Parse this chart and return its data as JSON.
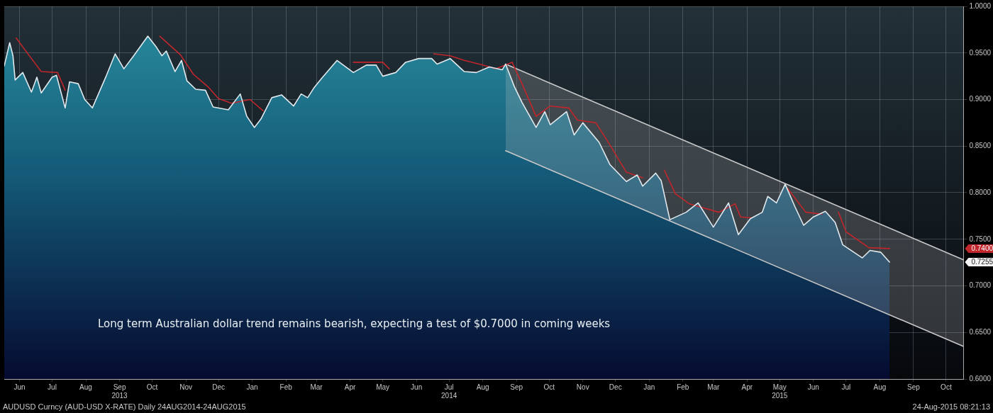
{
  "chart_data": {
    "type": "area",
    "grid": true,
    "legend": false,
    "marker": "none",
    "xlim": [
      "2013-06-01",
      "2015-10-31"
    ],
    "xticks": [
      {
        "value": "2013-06-15",
        "label": "Jun"
      },
      {
        "value": "2013-07-15",
        "label": "Jul"
      },
      {
        "value": "2013-08-15",
        "label": "Aug"
      },
      {
        "value": "2013-09-15",
        "label": "Sep\n2013"
      },
      {
        "value": "2013-10-15",
        "label": "Oct"
      },
      {
        "value": "2013-11-15",
        "label": "Nov"
      },
      {
        "value": "2013-12-15",
        "label": "Dec"
      },
      {
        "value": "2014-01-15",
        "label": "Jan"
      },
      {
        "value": "2014-02-15",
        "label": "Feb"
      },
      {
        "value": "2014-03-15",
        "label": "Mar"
      },
      {
        "value": "2014-04-15",
        "label": "Apr"
      },
      {
        "value": "2014-05-15",
        "label": "May"
      },
      {
        "value": "2014-06-15",
        "label": "Jun"
      },
      {
        "value": "2014-07-15",
        "label": "Jul\n2014"
      },
      {
        "value": "2014-08-15",
        "label": "Aug"
      },
      {
        "value": "2014-09-15",
        "label": "Sep"
      },
      {
        "value": "2014-10-15",
        "label": "Oct"
      },
      {
        "value": "2014-11-15",
        "label": "Nov"
      },
      {
        "value": "2014-12-15",
        "label": "Dec"
      },
      {
        "value": "2015-01-15",
        "label": "Jan"
      },
      {
        "value": "2015-02-15",
        "label": "Feb"
      },
      {
        "value": "2015-03-15",
        "label": "Mar"
      },
      {
        "value": "2015-04-15",
        "label": "Apr"
      },
      {
        "value": "2015-05-15",
        "label": "May\n2015"
      },
      {
        "value": "2015-06-15",
        "label": "Jun"
      },
      {
        "value": "2015-07-15",
        "label": "Jul"
      },
      {
        "value": "2015-08-15",
        "label": "Aug"
      },
      {
        "value": "2015-09-15",
        "label": "Sep"
      },
      {
        "value": "2015-10-15",
        "label": "Oct"
      }
    ],
    "ylim": [
      0.6,
      1.0
    ],
    "yticks": [
      {
        "value": 0.6,
        "label": "0.6000"
      },
      {
        "value": 0.65,
        "label": "0.6500"
      },
      {
        "value": 0.7,
        "label": "0.7000"
      },
      {
        "value": 0.75,
        "label": "0.7500"
      },
      {
        "value": 0.8,
        "label": "0.8000"
      },
      {
        "value": 0.85,
        "label": "0.8500"
      },
      {
        "value": 0.9,
        "label": "0.9000"
      },
      {
        "value": 0.95,
        "label": "0.9500"
      },
      {
        "value": 1.0,
        "label": "1.0000"
      }
    ],
    "series": [
      {
        "color": "#dfe9ee",
        "x": [
          "2013-06-01",
          "2013-06-06",
          "2013-06-09",
          "2013-06-11",
          "2013-06-18",
          "2013-06-26",
          "2013-07-01",
          "2013-07-05",
          "2013-07-15",
          "2013-07-19",
          "2013-07-27",
          "2013-07-31",
          "2013-08-08",
          "2013-08-14",
          "2013-08-21",
          "2013-09-03",
          "2013-09-11",
          "2013-09-19",
          "2013-09-28",
          "2013-10-11",
          "2013-10-19",
          "2013-10-24",
          "2013-10-28",
          "2013-11-05",
          "2013-11-11",
          "2013-11-16",
          "2013-11-24",
          "2013-12-03",
          "2013-12-10",
          "2013-12-24",
          "2014-01-04",
          "2014-01-10",
          "2014-01-17",
          "2014-01-23",
          "2014-02-02",
          "2014-02-11",
          "2014-02-22",
          "2014-03-01",
          "2014-03-07",
          "2014-03-13",
          "2014-03-20",
          "2014-04-03",
          "2014-04-18",
          "2014-04-30",
          "2014-05-09",
          "2014-05-15",
          "2014-05-27",
          "2014-06-05",
          "2014-06-17",
          "2014-06-29",
          "2014-07-04",
          "2014-07-16",
          "2014-07-29",
          "2014-08-09",
          "2014-08-21",
          "2014-09-02",
          "2014-09-05",
          "2014-09-13",
          "2014-09-20",
          "2014-10-03",
          "2014-10-11",
          "2014-10-16",
          "2014-10-31",
          "2014-11-07",
          "2014-11-15",
          "2014-11-30",
          "2014-12-10",
          "2014-12-25",
          "2015-01-04",
          "2015-01-09",
          "2015-01-21",
          "2015-01-26",
          "2015-02-03",
          "2015-02-18",
          "2015-03-01",
          "2015-03-15",
          "2015-03-29",
          "2015-04-07",
          "2015-04-18",
          "2015-04-29",
          "2015-05-04",
          "2015-05-12",
          "2015-05-20",
          "2015-05-29",
          "2015-06-06",
          "2015-06-15",
          "2015-06-26",
          "2015-07-05",
          "2015-07-12",
          "2015-07-30",
          "2015-08-06",
          "2015-08-16",
          "2015-08-24"
        ],
        "values": [
          0.936,
          0.961,
          0.947,
          0.921,
          0.929,
          0.908,
          0.924,
          0.907,
          0.924,
          0.926,
          0.891,
          0.919,
          0.917,
          0.9,
          0.891,
          0.926,
          0.949,
          0.933,
          0.947,
          0.968,
          0.956,
          0.947,
          0.952,
          0.93,
          0.942,
          0.92,
          0.911,
          0.91,
          0.892,
          0.889,
          0.906,
          0.882,
          0.87,
          0.879,
          0.902,
          0.905,
          0.893,
          0.906,
          0.902,
          0.913,
          0.923,
          0.942,
          0.929,
          0.937,
          0.937,
          0.925,
          0.929,
          0.94,
          0.944,
          0.944,
          0.938,
          0.944,
          0.93,
          0.929,
          0.935,
          0.932,
          0.938,
          0.914,
          0.897,
          0.87,
          0.887,
          0.873,
          0.887,
          0.862,
          0.875,
          0.854,
          0.83,
          0.812,
          0.819,
          0.807,
          0.821,
          0.813,
          0.771,
          0.779,
          0.789,
          0.763,
          0.789,
          0.755,
          0.772,
          0.779,
          0.796,
          0.789,
          0.809,
          0.785,
          0.765,
          0.774,
          0.78,
          0.768,
          0.744,
          0.73,
          0.738,
          0.736,
          0.7255
        ]
      },
      {
        "type": "line",
        "color": "#c0262c",
        "x": [
          "2013-06-12",
          "2013-06-26",
          "2013-07-05",
          "2013-07-20",
          "2013-07-27",
          "2013-08-01",
          "2013-10-22",
          "2013-11-10",
          "2013-11-22",
          "2013-12-06",
          "2013-12-15",
          "2013-12-27",
          "2014-01-13",
          "2014-01-25",
          "2014-02-05",
          "2014-04-18",
          "2014-05-15",
          "2014-05-21",
          "2014-06-01",
          "2014-07-01",
          "2014-07-16",
          "2014-07-29",
          "2014-08-15",
          "2014-08-27",
          "2014-09-11",
          "2014-09-20",
          "2014-10-03",
          "2014-10-16",
          "2014-11-02",
          "2014-11-10",
          "2014-11-27",
          "2014-12-10",
          "2014-12-25",
          "2015-01-09",
          "2015-01-15",
          "2015-01-29",
          "2015-02-08",
          "2015-02-21",
          "2015-03-20",
          "2015-04-04",
          "2015-04-09",
          "2015-04-19",
          "2015-04-25",
          "2015-05-22",
          "2015-06-08",
          "2015-06-23",
          "2015-06-28",
          "2015-07-08",
          "2015-07-15",
          "2015-08-05",
          "2015-08-24"
        ],
        "values": [
          0.966,
          0.944,
          0.93,
          0.929,
          0.91,
          null,
          0.968,
          0.948,
          0.927,
          0.913,
          0.901,
          0.896,
          0.9,
          0.888,
          null,
          0.94,
          0.94,
          0.933,
          null,
          0.949,
          0.947,
          0.942,
          0.937,
          0.933,
          0.94,
          0.917,
          0.882,
          0.893,
          0.891,
          0.878,
          0.875,
          0.851,
          0.822,
          0.816,
          null,
          0.824,
          0.799,
          0.788,
          0.779,
          0.788,
          0.774,
          0.773,
          null,
          0.805,
          0.779,
          0.777,
          null,
          0.779,
          0.758,
          0.741,
          0.74
        ]
      },
      {
        "type": "line",
        "color": "#c8c8c8",
        "x": [
          "2014-09-05",
          "2015-10-31"
        ],
        "values": [
          0.938,
          0.728
        ],
        "upper": [
          0.938,
          0.728
        ],
        "lower": [
          0.845,
          0.635
        ]
      },
      {
        "type": "line",
        "color": "#c8c8c8",
        "x": [
          "2014-09-05",
          "2015-10-31"
        ],
        "values": [
          0.845,
          0.635
        ]
      }
    ],
    "annotations": [
      "Long term Australian dollar trend remains bearish, expecting a test of $0.7000 in coming weeks",
      "AUDUSD Curncy (AUD-USD X-RATE)  Daily 24AUG2014-24AUG2015",
      "24-Aug-2015 08:21:13",
      "0.7400",
      "0.7255"
    ]
  }
}
